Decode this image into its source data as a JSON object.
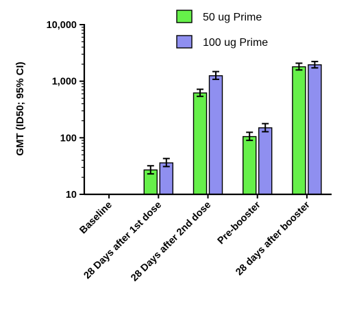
{
  "chart_data": {
    "type": "bar",
    "scale": "log",
    "ylim": [
      10,
      10000
    ],
    "ylabel": "GMT (ID50; 95% CI)",
    "xlabel": "",
    "title": "",
    "yticks": [
      10,
      100,
      1000,
      10000
    ],
    "ytick_labels": [
      "10",
      "100",
      "1,000",
      "10,000"
    ],
    "categories": [
      "Baseline",
      "28 Days after 1st dose",
      "28 Days after 2nd dose",
      "Pre-booster",
      "28 days after booster"
    ],
    "series": [
      {
        "name": "50 ug Prime",
        "color": "#66f04a",
        "values": [
          null,
          27,
          620,
          105,
          1800
        ],
        "ci_low": [
          null,
          23,
          540,
          90,
          1580
        ],
        "ci_high": [
          null,
          32,
          720,
          125,
          2080
        ]
      },
      {
        "name": "100 ug Prime",
        "color": "#8f8ff0",
        "values": [
          null,
          36,
          1250,
          150,
          1950
        ],
        "ci_low": [
          null,
          31,
          1080,
          128,
          1720
        ],
        "ci_high": [
          null,
          43,
          1480,
          178,
          2230
        ]
      }
    ],
    "legend_position": "top-right",
    "grid": false
  }
}
